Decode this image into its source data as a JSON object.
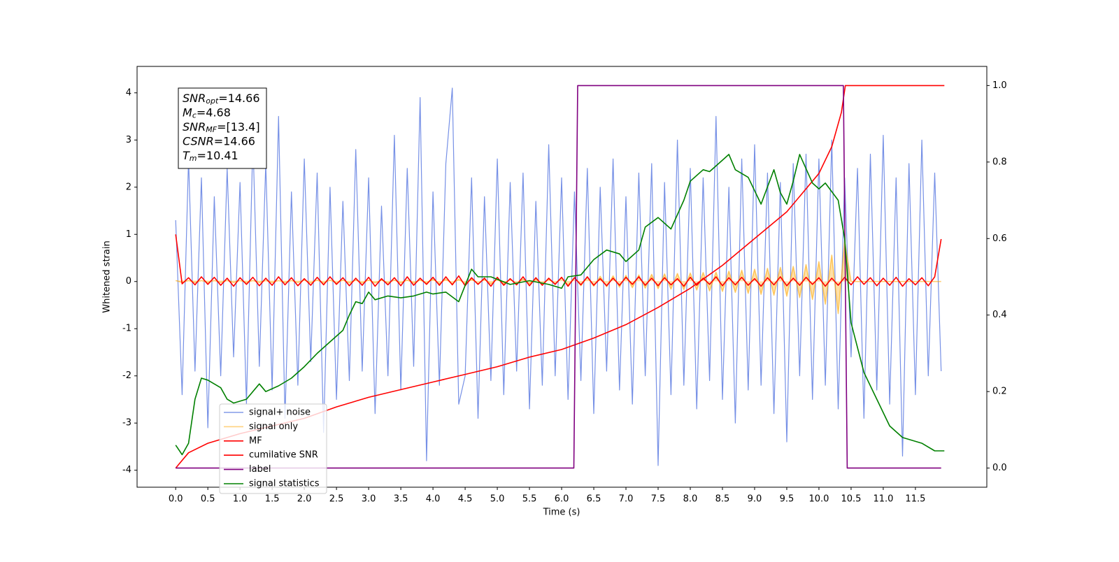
{
  "chart_data": {
    "type": "line",
    "xlabel": "Time (s)",
    "ylabel": "Whitened strain",
    "xlim": [
      -0.6,
      12.61
    ],
    "ylim": [
      -4.36,
      4.56
    ],
    "y2lim": [
      -0.05,
      1.05
    ],
    "xticks": [
      {
        "value": 0,
        "label": "0.0"
      },
      0.5,
      {
        "value": 1,
        "label": "1.0"
      },
      1.5,
      {
        "value": 2,
        "label": "2.0"
      },
      2.5,
      {
        "value": 3,
        "label": "3.0"
      },
      3.5,
      {
        "value": 4,
        "label": "4.0"
      },
      4.5,
      {
        "value": 5,
        "label": "5.0"
      },
      5.5,
      {
        "value": 6,
        "label": "6.0"
      },
      6.5,
      {
        "value": 7,
        "label": "7.0"
      },
      7.5,
      {
        "value": 8,
        "label": "8.0"
      },
      8.5,
      {
        "value": 9,
        "label": "9.0"
      },
      9.5,
      {
        "value": 10,
        "label": "10.0"
      },
      10.5,
      {
        "value": 11,
        "label": "11.0"
      },
      11.5
    ],
    "yticks": [
      -4,
      -3,
      -2,
      -1,
      0,
      1,
      2,
      3,
      4
    ],
    "y2ticks": [
      {
        "value": 0,
        "label": "0.0"
      },
      0.2,
      0.4,
      0.6,
      0.8,
      {
        "value": 1,
        "label": "1.0"
      }
    ],
    "legend": "lower left",
    "annotation": [
      {
        "text": "SNR",
        "sub": "opt",
        "rest": "=14.66"
      },
      {
        "text": "M",
        "sub": "c",
        "rest": "=4.68"
      },
      {
        "text": "SNR",
        "sub": "MF",
        "rest": "=[13.4]"
      },
      {
        "text": "CSNR",
        "sub": "",
        "rest": "=14.66"
      },
      {
        "text": "T",
        "sub": "m",
        "rest": "=10.41"
      }
    ],
    "x": [
      0,
      0.1,
      0.2,
      0.3,
      0.4,
      0.5,
      0.6,
      0.7,
      0.8,
      0.9,
      1,
      1.1,
      1.2,
      1.3,
      1.4,
      1.5,
      1.6,
      1.7,
      1.8,
      1.9,
      2,
      2.1,
      2.2,
      2.3,
      2.4,
      2.5,
      2.6,
      2.7,
      2.8,
      2.9,
      3,
      3.1,
      3.2,
      3.3,
      3.4,
      3.5,
      3.6,
      3.7,
      3.8,
      3.9,
      4,
      4.1,
      4.2,
      4.3,
      4.4,
      4.5,
      4.6,
      4.7,
      4.8,
      4.9,
      5,
      5.1,
      5.2,
      5.3,
      5.4,
      5.5,
      5.6,
      5.7,
      5.8,
      5.9,
      6,
      6.1,
      6.2,
      6.3,
      6.4,
      6.5,
      6.6,
      6.7,
      6.8,
      6.9,
      7,
      7.1,
      7.2,
      7.3,
      7.4,
      7.5,
      7.6,
      7.7,
      7.8,
      7.9,
      8,
      8.1,
      8.2,
      8.3,
      8.4,
      8.5,
      8.6,
      8.7,
      8.8,
      8.9,
      9,
      9.1,
      9.2,
      9.3,
      9.4,
      9.5,
      9.6,
      9.7,
      9.8,
      9.9,
      10,
      10.1,
      10.2,
      10.3,
      10.4,
      10.5,
      10.6,
      10.7,
      10.8,
      10.9,
      11,
      11.1,
      11.2,
      11.3,
      11.4,
      11.5,
      11.6,
      11.7,
      11.8,
      11.9
    ],
    "series": [
      {
        "name": "signal+ noise",
        "color": "#7690e6",
        "values": [
          1.3,
          -2.4,
          2.6,
          -1.9,
          2.2,
          -3.1,
          1.8,
          -2.0,
          2.4,
          -1.6,
          2.1,
          -2.6,
          3.0,
          -1.8,
          2.5,
          -2.3,
          3.5,
          -2.9,
          1.9,
          -2.2,
          2.6,
          -1.7,
          2.3,
          -3.2,
          2.0,
          -2.5,
          1.7,
          -2.1,
          2.8,
          -1.9,
          2.2,
          -2.8,
          1.6,
          -2.0,
          3.1,
          -2.3,
          2.4,
          -1.8,
          3.9,
          -3.8,
          1.9,
          -2.2,
          2.5,
          4.1,
          -2.6,
          -2.0,
          2.2,
          -2.9,
          1.8,
          -2.1,
          2.6,
          -2.4,
          2.1,
          -1.9,
          2.3,
          -2.7,
          1.7,
          -2.2,
          2.9,
          -2.0,
          2.2,
          -2.5,
          1.9,
          -2.1,
          2.4,
          -2.8,
          2.0,
          -1.9,
          2.6,
          -2.3,
          1.8,
          -2.6,
          2.3,
          -2.0,
          2.5,
          -3.9,
          2.1,
          -2.4,
          3.0,
          -2.2,
          2.4,
          -2.7,
          2.2,
          -2.1,
          3.5,
          -2.5,
          2.0,
          -3.0,
          2.6,
          -2.3,
          2.9,
          -2.2,
          2.3,
          -2.8,
          2.1,
          -3.4,
          2.5,
          -2.0,
          2.7,
          -2.5,
          2.6,
          -2.2,
          3.0,
          -2.7,
          2.2,
          -1.6,
          2.4,
          -2.9,
          2.7,
          -2.3,
          3.1,
          -2.6,
          2.2,
          -3.7,
          2.5,
          -2.4,
          3.0,
          -2.0,
          2.3,
          -1.9
        ]
      },
      {
        "name": "signal only",
        "color": "#ffa500",
        "values": [
          0.02,
          -0.02,
          0.02,
          -0.02,
          0.02,
          -0.02,
          0.02,
          -0.02,
          0.02,
          -0.02,
          0.02,
          -0.02,
          0.02,
          -0.02,
          0.02,
          -0.02,
          0.02,
          -0.02,
          0.02,
          -0.02,
          0.03,
          -0.03,
          0.03,
          -0.03,
          0.03,
          -0.03,
          0.03,
          -0.03,
          0.03,
          -0.03,
          0.03,
          -0.03,
          0.03,
          -0.03,
          0.03,
          -0.03,
          0.03,
          -0.03,
          0.03,
          -0.03,
          0.05,
          -0.05,
          0.05,
          -0.05,
          0.05,
          -0.05,
          0.05,
          -0.05,
          0.05,
          -0.05,
          0.05,
          -0.05,
          0.05,
          -0.05,
          0.05,
          -0.05,
          0.05,
          -0.05,
          0.05,
          -0.05,
          0.08,
          -0.08,
          0.09,
          -0.09,
          0.1,
          -0.1,
          0.11,
          -0.11,
          0.12,
          -0.12,
          0.13,
          -0.13,
          0.14,
          -0.14,
          0.15,
          -0.15,
          0.16,
          -0.16,
          0.17,
          -0.17,
          0.18,
          -0.18,
          0.19,
          -0.2,
          0.2,
          -0.21,
          0.22,
          -0.23,
          0.24,
          -0.25,
          0.26,
          -0.27,
          0.28,
          -0.29,
          0.3,
          -0.31,
          0.32,
          -0.34,
          0.36,
          -0.38,
          0.42,
          -0.48,
          0.56,
          -0.68,
          0.85,
          0,
          0,
          0,
          0,
          0,
          0,
          0,
          0,
          0,
          0,
          0,
          0,
          0,
          0,
          0
        ]
      },
      {
        "name": "MF",
        "color": "#ff0000",
        "values": [
          1.0,
          -0.05,
          0.08,
          -0.07,
          0.1,
          -0.06,
          0.09,
          -0.08,
          0.07,
          -0.1,
          0.08,
          -0.06,
          0.09,
          -0.09,
          0.07,
          -0.08,
          0.1,
          -0.07,
          0.08,
          -0.09,
          0.06,
          -0.08,
          0.09,
          -0.07,
          0.1,
          -0.06,
          0.08,
          -0.09,
          0.07,
          -0.08,
          0.09,
          -0.1,
          0.06,
          -0.07,
          0.08,
          -0.09,
          0.1,
          -0.08,
          0.07,
          -0.06,
          0.09,
          -0.08,
          0.1,
          -0.07,
          0.12,
          -0.09,
          0.08,
          -0.06,
          0.07,
          -0.1,
          0.09,
          -0.08,
          0.06,
          -0.07,
          0.1,
          -0.09,
          0.08,
          -0.08,
          0.07,
          -0.06,
          0.09,
          -0.1,
          0.08,
          -0.07,
          0.1,
          -0.08,
          0.06,
          -0.09,
          0.07,
          -0.08,
          0.09,
          -0.06,
          0.1,
          -0.08,
          0.07,
          -0.09,
          0.08,
          -0.07,
          0.06,
          -0.1,
          0.09,
          -0.08,
          0.07,
          -0.06,
          0.1,
          -0.09,
          0.08,
          -0.07,
          0.09,
          -0.08,
          0.06,
          -0.1,
          0.08,
          -0.07,
          0.1,
          -0.09,
          0.07,
          -0.08,
          0.09,
          -0.06,
          0.08,
          -0.1,
          0.07,
          -0.08,
          0.09,
          -0.07,
          0.1,
          -0.06,
          0.08,
          -0.09,
          0.07,
          -0.08,
          0.09,
          -0.1,
          0.06,
          -0.07,
          0.08,
          -0.09,
          0.1,
          0.9
        ]
      },
      {
        "name": "cumilative SNR",
        "color": "#ff0000",
        "axis": "y2",
        "x": [
          0,
          0.2,
          0.5,
          1,
          1.5,
          2,
          2.5,
          3,
          3.5,
          4,
          4.5,
          5,
          5.5,
          6,
          6.5,
          7,
          7.5,
          8,
          8.5,
          9,
          9.5,
          10,
          10.2,
          10.35,
          10.41,
          11.95
        ],
        "values": [
          0,
          0.04,
          0.065,
          0.09,
          0.11,
          0.13,
          0.16,
          0.185,
          0.205,
          0.225,
          0.245,
          0.265,
          0.29,
          0.31,
          0.34,
          0.375,
          0.42,
          0.47,
          0.53,
          0.6,
          0.67,
          0.77,
          0.84,
          0.93,
          1.0,
          1.0
        ]
      },
      {
        "name": "label",
        "color": "#800080",
        "axis": "y2",
        "x": [
          0,
          6.19,
          6.25,
          10.38,
          10.44,
          11.9
        ],
        "values": [
          0,
          0,
          1,
          1,
          0,
          0
        ]
      },
      {
        "name": "signal statistics",
        "color": "#008000",
        "axis": "y2",
        "x": [
          0,
          0.1,
          0.2,
          0.3,
          0.4,
          0.5,
          0.7,
          0.8,
          0.9,
          1.1,
          1.3,
          1.4,
          1.6,
          1.8,
          2,
          2.2,
          2.4,
          2.6,
          2.7,
          2.8,
          2.9,
          3,
          3.1,
          3.3,
          3.5,
          3.7,
          3.9,
          4,
          4.2,
          4.4,
          4.6,
          4.7,
          4.9,
          5.2,
          5.5,
          5.8,
          6,
          6.1,
          6.3,
          6.5,
          6.7,
          6.9,
          7,
          7.2,
          7.3,
          7.5,
          7.7,
          7.9,
          8,
          8.2,
          8.3,
          8.5,
          8.6,
          8.7,
          8.9,
          9.1,
          9.3,
          9.4,
          9.5,
          9.6,
          9.7,
          9.9,
          10,
          10.1,
          10.3,
          10.4,
          10.5,
          10.7,
          10.9,
          11.1,
          11.3,
          11.6,
          11.8,
          11.95
        ],
        "values": [
          0.06,
          0.035,
          0.065,
          0.18,
          0.235,
          0.23,
          0.21,
          0.18,
          0.17,
          0.18,
          0.22,
          0.2,
          0.215,
          0.235,
          0.265,
          0.3,
          0.33,
          0.36,
          0.4,
          0.435,
          0.43,
          0.46,
          0.44,
          0.45,
          0.445,
          0.45,
          0.46,
          0.455,
          0.46,
          0.435,
          0.52,
          0.5,
          0.5,
          0.48,
          0.49,
          0.48,
          0.47,
          0.5,
          0.505,
          0.545,
          0.57,
          0.56,
          0.54,
          0.57,
          0.63,
          0.655,
          0.625,
          0.7,
          0.75,
          0.78,
          0.775,
          0.805,
          0.82,
          0.78,
          0.76,
          0.69,
          0.78,
          0.72,
          0.69,
          0.75,
          0.82,
          0.745,
          0.73,
          0.745,
          0.7,
          0.6,
          0.38,
          0.25,
          0.18,
          0.11,
          0.08,
          0.065,
          0.045,
          0.045
        ]
      }
    ]
  }
}
